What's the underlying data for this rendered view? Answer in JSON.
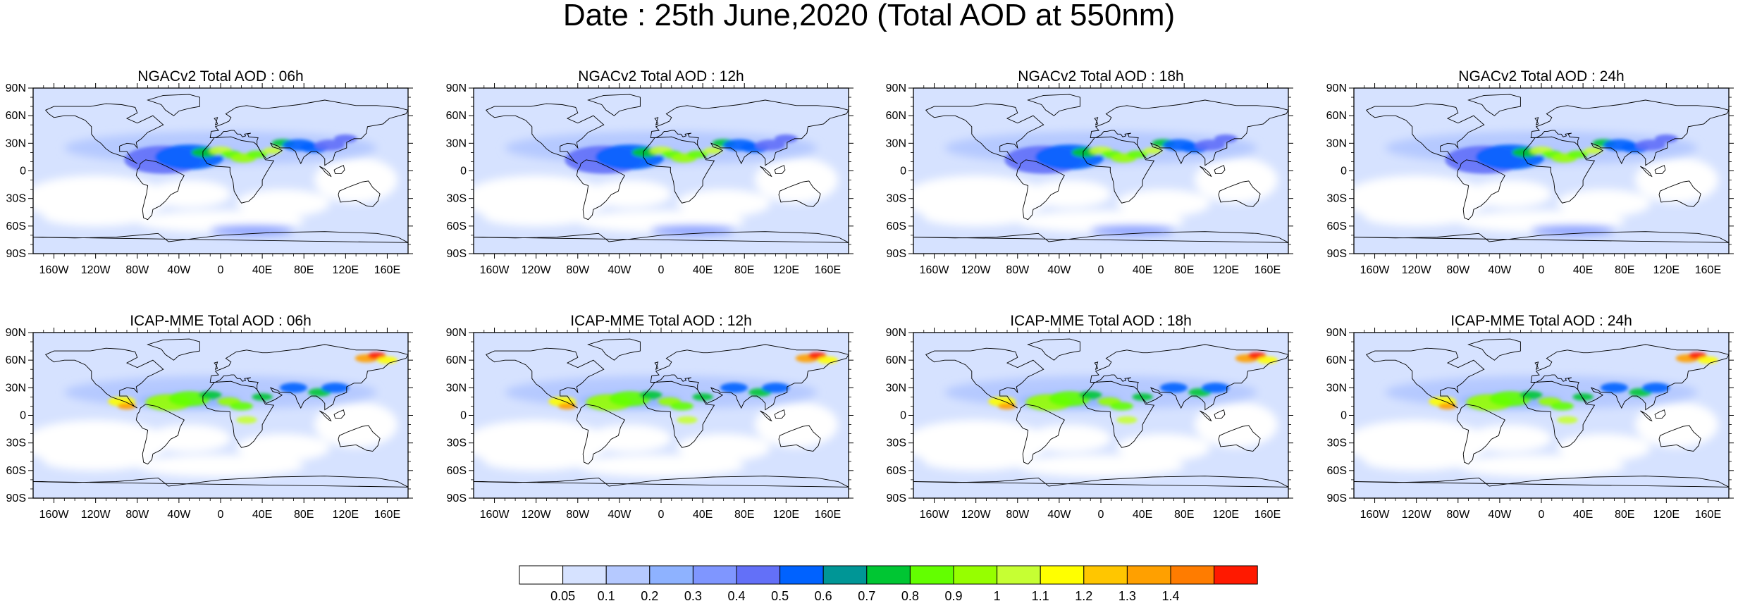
{
  "figure": {
    "title": "Date : 25th June,2020 (Total AOD at 550nm)"
  },
  "panels": [
    {
      "title": "NGACv2 Total AOD : 06h",
      "model": "NGACv2",
      "hour": "06h"
    },
    {
      "title": "NGACv2 Total AOD : 12h",
      "model": "NGACv2",
      "hour": "12h"
    },
    {
      "title": "NGACv2 Total AOD : 18h",
      "model": "NGACv2",
      "hour": "18h"
    },
    {
      "title": "NGACv2 Total AOD : 24h",
      "model": "NGACv2",
      "hour": "24h"
    },
    {
      "title": "ICAP-MME Total AOD : 06h",
      "model": "ICAP-MME",
      "hour": "06h"
    },
    {
      "title": "ICAP-MME Total AOD : 12h",
      "model": "ICAP-MME",
      "hour": "12h"
    },
    {
      "title": "ICAP-MME Total AOD : 18h",
      "model": "ICAP-MME",
      "hour": "18h"
    },
    {
      "title": "ICAP-MME Total AOD : 24h",
      "model": "ICAP-MME",
      "hour": "24h"
    }
  ],
  "axes": {
    "lat_ticks": [
      "90N",
      "60N",
      "30N",
      "0",
      "30S",
      "60S",
      "90S"
    ],
    "lon_ticks": [
      "160W",
      "120W",
      "80W",
      "40W",
      "0",
      "40E",
      "80E",
      "120E",
      "160E"
    ]
  },
  "colorbar": {
    "labels": [
      "0.05",
      "0.1",
      "0.2",
      "0.3",
      "0.4",
      "0.5",
      "0.6",
      "0.7",
      "0.8",
      "0.9",
      "1",
      "1.1",
      "1.2",
      "1.3",
      "1.4"
    ],
    "colors": [
      "#ffffff",
      "#d6e2ff",
      "#b5c9ff",
      "#8eb2ff",
      "#7f96ff",
      "#6370f8",
      "#0062ff",
      "#009696",
      "#00c633",
      "#63ff00",
      "#96ff00",
      "#c6ff33",
      "#ffff00",
      "#ffc600",
      "#ffa000",
      "#ff7c00",
      "#ff1900"
    ]
  }
}
